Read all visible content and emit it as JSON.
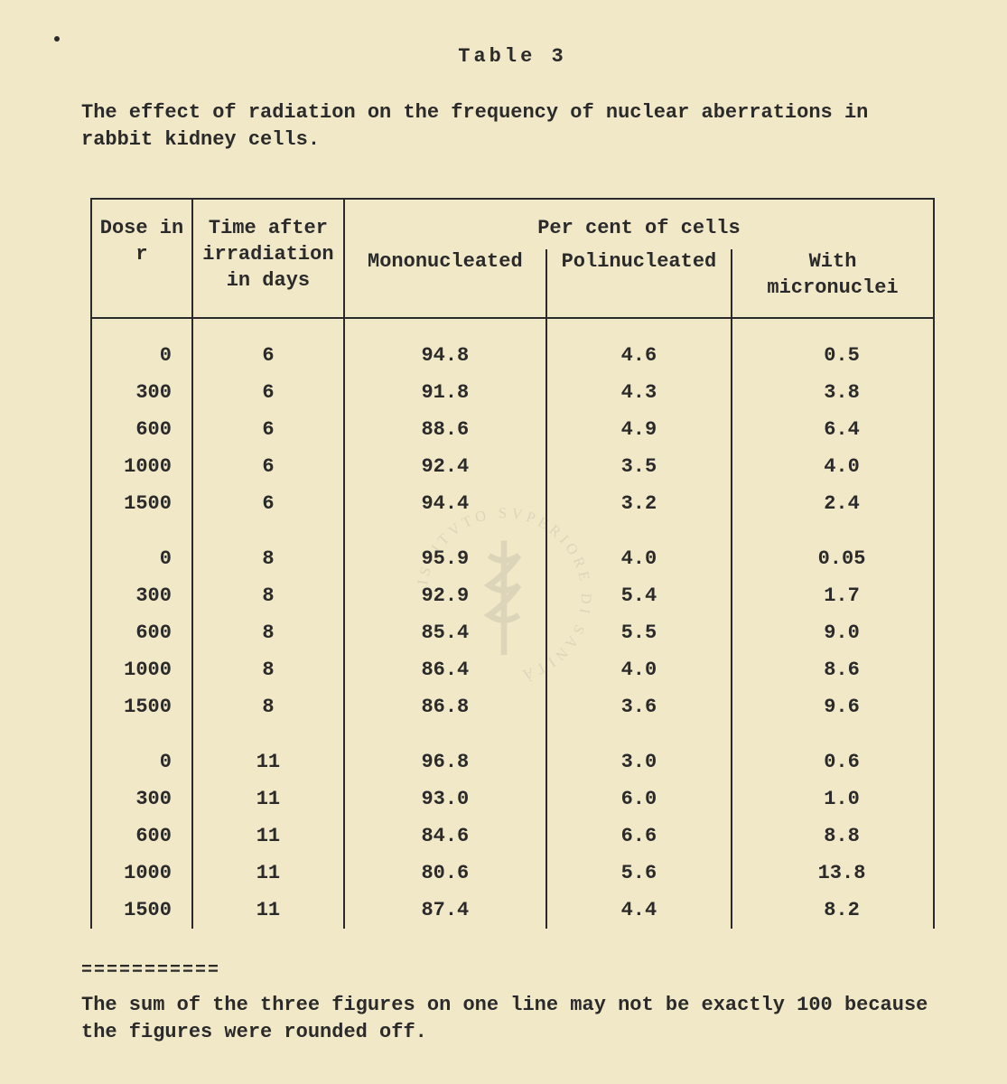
{
  "colors": {
    "background": "#f1e8c8",
    "text": "#2a2a2a",
    "border": "#2a2a2a",
    "watermark": "#7a7a7a"
  },
  "typography": {
    "font_family": "Courier New",
    "title_fontsize": 22,
    "body_fontsize": 22,
    "weight": "bold"
  },
  "table_label": "Table  3",
  "caption": "The effect of radiation on the frequency of nuclear aberrations in rabbit kidney cells.",
  "columns": {
    "dose": "Dose in r",
    "time": "Time after irradiation in days",
    "group": "Per cent of cells",
    "mono": "Mononucleated",
    "poli": "Polinucleated",
    "micro": "With micronuclei"
  },
  "groups": [
    {
      "rows": [
        {
          "dose": "0",
          "time": "6",
          "mono": "94.8",
          "poli": "4.6",
          "micro": "0.5"
        },
        {
          "dose": "300",
          "time": "6",
          "mono": "91.8",
          "poli": "4.3",
          "micro": "3.8"
        },
        {
          "dose": "600",
          "time": "6",
          "mono": "88.6",
          "poli": "4.9",
          "micro": "6.4"
        },
        {
          "dose": "1000",
          "time": "6",
          "mono": "92.4",
          "poli": "3.5",
          "micro": "4.0"
        },
        {
          "dose": "1500",
          "time": "6",
          "mono": "94.4",
          "poli": "3.2",
          "micro": "2.4"
        }
      ]
    },
    {
      "rows": [
        {
          "dose": "0",
          "time": "8",
          "mono": "95.9",
          "poli": "4.0",
          "micro": "0.05"
        },
        {
          "dose": "300",
          "time": "8",
          "mono": "92.9",
          "poli": "5.4",
          "micro": "1.7"
        },
        {
          "dose": "600",
          "time": "8",
          "mono": "85.4",
          "poli": "5.5",
          "micro": "9.0"
        },
        {
          "dose": "1000",
          "time": "8",
          "mono": "86.4",
          "poli": "4.0",
          "micro": "8.6"
        },
        {
          "dose": "1500",
          "time": "8",
          "mono": "86.8",
          "poli": "3.6",
          "micro": "9.6"
        }
      ]
    },
    {
      "rows": [
        {
          "dose": "0",
          "time": "11",
          "mono": "96.8",
          "poli": "3.0",
          "micro": "0.6"
        },
        {
          "dose": "300",
          "time": "11",
          "mono": "93.0",
          "poli": "6.0",
          "micro": "1.0"
        },
        {
          "dose": "600",
          "time": "11",
          "mono": "84.6",
          "poli": "6.6",
          "micro": "8.8"
        },
        {
          "dose": "1000",
          "time": "11",
          "mono": "80.6",
          "poli": "5.6",
          "micro": "13.8"
        },
        {
          "dose": "1500",
          "time": "11",
          "mono": "87.4",
          "poli": "4.4",
          "micro": "8.2"
        }
      ]
    }
  ],
  "separator": "===========",
  "footnote": "The sum of the three figures on one line may not be exactly 100 because the figures were rounded off.",
  "watermark_text": "ISTITVTO SVPERIORE DI SANITÀ"
}
